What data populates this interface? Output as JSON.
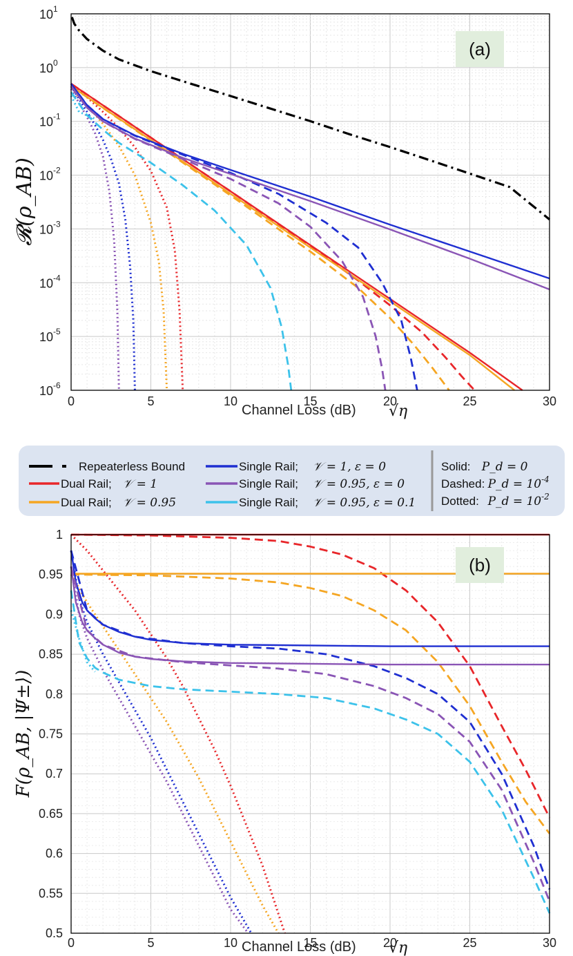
{
  "legend": {
    "items": [
      {
        "key": "bound",
        "label": "Repeaterless Bound",
        "color": "#000000",
        "math": ""
      },
      {
        "key": "dr1",
        "label": "Dual Rail;",
        "color": "#e8262a",
        "math": "𝒱 = 1"
      },
      {
        "key": "dr95",
        "label": "Dual Rail;",
        "color": "#f5a623",
        "math": "𝒱 = 0.95"
      },
      {
        "key": "sr1",
        "label": "Single Rail;",
        "color": "#1f2fd1",
        "math": "𝒱 = 1, ε = 0"
      },
      {
        "key": "sr95",
        "label": "Single Rail;",
        "color": "#8a55b5",
        "math": "𝒱 = 0.95, ε = 0"
      },
      {
        "key": "sr95e",
        "label": "Single Rail;",
        "color": "#3cc2ea",
        "math": "𝒱 = 0.95, ε = 0.1"
      }
    ],
    "styles": [
      {
        "label": "Solid:",
        "math": "P_d = 0"
      },
      {
        "label": "Dashed:",
        "math": "P_d = 10^-4"
      },
      {
        "label": "Dotted:",
        "math": "P_d = 10^-2"
      }
    ]
  },
  "chart_data": [
    {
      "panel_label": "(a)",
      "type": "line",
      "yscale": "log",
      "xlabel": "Channel Loss (dB)",
      "xlabel_math": "√η",
      "ylabel": "𝓡(ρ_AB)",
      "xlim": [
        0,
        30
      ],
      "ylim": [
        1e-06,
        10
      ],
      "xticks": [
        "0",
        "5",
        "10",
        "15",
        "20",
        "25",
        "30"
      ],
      "yticks": [
        {
          "base": "10",
          "exp": "-6"
        },
        {
          "base": "10",
          "exp": "-5"
        },
        {
          "base": "10",
          "exp": "-4"
        },
        {
          "base": "10",
          "exp": "-3"
        },
        {
          "base": "10",
          "exp": "-2"
        },
        {
          "base": "10",
          "exp": "-1"
        },
        {
          "base": "10",
          "exp": "0"
        },
        {
          "base": "10",
          "exp": "1"
        }
      ],
      "grid": true,
      "series": [
        {
          "name": "Repeaterless Bound",
          "color": "#000000",
          "style": "dashdot",
          "x": [
            0.05,
            0.2,
            0.5,
            1,
            2,
            3,
            5,
            7.5,
            10,
            12.5,
            15,
            17.5,
            20,
            22.5,
            25,
            27.5,
            30
          ],
          "y": [
            8.67,
            6.55,
            4.89,
            3.39,
            2.06,
            1.42,
            0.86,
            0.502,
            0.296,
            0.173,
            0.101,
            0.057,
            0.0333,
            0.0189,
            0.0107,
            0.00601,
            0.0015
          ]
        },
        {
          "name": "Dual Rail; 𝒱 = 1 (P_d = 0)",
          "color": "#e8262a",
          "style": "solid",
          "x": [
            0,
            5,
            10,
            15,
            20,
            25,
            28.3
          ],
          "y": [
            0.5,
            0.05,
            0.005,
            0.0005,
            5e-05,
            5e-06,
            1e-06
          ]
        },
        {
          "name": "Dual Rail; 𝒱 = 1 (P_d = 1e-4)",
          "color": "#e8262a",
          "style": "dashed",
          "x": [
            0,
            5,
            10,
            15,
            18,
            20,
            22,
            23.5,
            24.5,
            25.3
          ],
          "y": [
            0.5,
            0.05,
            0.005,
            0.00048,
            0.00011,
            3.8e-05,
            1.2e-05,
            4e-06,
            1.8e-06,
            1e-06
          ]
        },
        {
          "name": "Dual Rail; 𝒱 = 1 (P_d = 1e-2)",
          "color": "#e8262a",
          "style": "dotted",
          "x": [
            0,
            1,
            2,
            3,
            4,
            5,
            6,
            6.5,
            6.8,
            7.0
          ],
          "y": [
            0.5,
            0.28,
            0.15,
            0.075,
            0.033,
            0.012,
            0.0025,
            0.0004,
            3e-05,
            1e-06
          ]
        },
        {
          "name": "Dual Rail; 𝒱 = 0.95 (P_d = 0)",
          "color": "#f5a623",
          "style": "solid",
          "x": [
            0,
            5,
            10,
            15,
            20,
            25,
            27.8
          ],
          "y": [
            0.45,
            0.045,
            0.0045,
            0.00045,
            4.5e-05,
            4.5e-06,
            1e-06
          ]
        },
        {
          "name": "Dual Rail; 𝒱 = 0.95 (P_d = 1e-4)",
          "color": "#f5a623",
          "style": "dashed",
          "x": [
            0,
            5,
            10,
            15,
            18,
            20,
            21.5,
            22.7,
            23.7
          ],
          "y": [
            0.45,
            0.044,
            0.0042,
            0.00038,
            8e-05,
            2.2e-05,
            7e-06,
            2.5e-06,
            1e-06
          ]
        },
        {
          "name": "Dual Rail; 𝒱 = 0.95 (P_d = 1e-2)",
          "color": "#f5a623",
          "style": "dotted",
          "x": [
            0,
            1,
            2,
            3,
            4,
            5,
            5.5,
            5.8,
            6.0
          ],
          "y": [
            0.4,
            0.2,
            0.09,
            0.035,
            0.01,
            0.0013,
            0.00025,
            3e-05,
            1e-06
          ]
        },
        {
          "name": "Single Rail; 𝒱 = 1, ε = 0 (P_d = 0)",
          "color": "#1f2fd1",
          "style": "solid",
          "x": [
            0,
            1,
            2,
            4,
            7,
            10,
            15,
            20,
            25,
            30
          ],
          "y": [
            0.5,
            0.2,
            0.11,
            0.055,
            0.025,
            0.0125,
            0.004,
            0.0012,
            0.00038,
            0.00012
          ]
        },
        {
          "name": "Single Rail; 𝒱 = 1, ε = 0 (P_d = 1e-4)",
          "color": "#1f2fd1",
          "style": "dashed",
          "x": [
            0,
            1,
            2,
            4,
            7,
            10,
            13,
            16,
            18,
            19.5,
            20.7,
            21.3,
            21.7
          ],
          "y": [
            0.5,
            0.2,
            0.11,
            0.054,
            0.024,
            0.011,
            0.0045,
            0.0013,
            0.00045,
            0.0001,
            2e-05,
            4e-06,
            1e-06
          ]
        },
        {
          "name": "Single Rail; 𝒱 = 1, ε = 0 (P_d = 1e-2)",
          "color": "#1f2fd1",
          "style": "dotted",
          "x": [
            0,
            0.5,
            1,
            1.5,
            2,
            2.5,
            3,
            3.4,
            3.7,
            3.9,
            4.0
          ],
          "y": [
            0.45,
            0.26,
            0.15,
            0.085,
            0.045,
            0.02,
            0.007,
            0.0015,
            0.0002,
            2e-05,
            1e-06
          ]
        },
        {
          "name": "Single Rail; 𝒱 = 0.95, ε = 0 (P_d = 0)",
          "color": "#8a55b5",
          "style": "solid",
          "x": [
            0,
            1,
            2,
            4,
            7,
            10,
            15,
            20,
            25,
            30
          ],
          "y": [
            0.45,
            0.18,
            0.1,
            0.048,
            0.021,
            0.0105,
            0.0033,
            0.00098,
            0.00028,
            7.5e-05
          ]
        },
        {
          "name": "Single Rail; 𝒱 = 0.95, ε = 0 (P_d = 1e-4)",
          "color": "#8a55b5",
          "style": "dashed",
          "x": [
            0,
            1,
            2,
            4,
            7,
            10,
            13,
            15,
            17,
            18.3,
            19.1,
            19.5,
            19.7
          ],
          "y": [
            0.45,
            0.18,
            0.1,
            0.047,
            0.02,
            0.0085,
            0.003,
            0.0011,
            0.00025,
            5.5e-05,
            1e-05,
            2.5e-06,
            1e-06
          ]
        },
        {
          "name": "Single Rail; 𝒱 = 0.95, ε = 0 (P_d = 1e-2)",
          "color": "#8a55b5",
          "style": "dotted",
          "x": [
            0,
            0.5,
            1,
            1.5,
            2,
            2.4,
            2.7,
            2.9,
            3.0
          ],
          "y": [
            0.4,
            0.22,
            0.12,
            0.06,
            0.022,
            0.005,
            0.0006,
            3e-05,
            1e-06
          ]
        },
        {
          "name": "Single Rail; 𝒱 = 0.95, ε = 0.1 (P_d = 1e-4)",
          "color": "#3cc2ea",
          "style": "dashed",
          "x": [
            0,
            1,
            2,
            3,
            5,
            7,
            9,
            11,
            12.5,
            13.2,
            13.6,
            13.8
          ],
          "y": [
            0.35,
            0.13,
            0.07,
            0.04,
            0.017,
            0.0065,
            0.0022,
            0.0005,
            8e-05,
            1.5e-05,
            3e-06,
            1e-06
          ]
        },
        {
          "name": "Single Rail; 𝒱 = 0.95, ε = 0.1 (P_d = 1e-2)",
          "color": "#3cc2ea",
          "style": "dotted",
          "x": [
            0,
            0.5,
            1,
            1.3,
            1.5
          ],
          "y": [
            0.3,
            0.15,
            0.13,
            0.12,
            0.11
          ]
        }
      ]
    },
    {
      "panel_label": "(b)",
      "type": "line",
      "yscale": "linear",
      "xlabel": "Channel Loss (dB)",
      "xlabel_math": "√η",
      "ylabel": "F(ρ_AB, |Ψ±⟩)",
      "xlim": [
        0,
        30
      ],
      "ylim": [
        0.5,
        1.0
      ],
      "xticks": [
        "0",
        "5",
        "10",
        "15",
        "20",
        "25",
        "30"
      ],
      "yticks": [
        "0.5",
        "0.55",
        "0.6",
        "0.65",
        "0.7",
        "0.75",
        "0.8",
        "0.85",
        "0.9",
        "0.95",
        "1"
      ],
      "grid": true,
      "series": [
        {
          "name": "Dual Rail; 𝒱 = 1 (P_d = 0)",
          "color": "#e8262a",
          "style": "solid",
          "x": [
            0,
            30
          ],
          "y": [
            1.0,
            1.0
          ]
        },
        {
          "name": "Dual Rail; 𝒱 = 1 (P_d = 1e-4)",
          "color": "#e8262a",
          "style": "dashed",
          "x": [
            0,
            5,
            10,
            13,
            15,
            17,
            19,
            21,
            23,
            25,
            27,
            28.5,
            30
          ],
          "y": [
            1.0,
            0.999,
            0.996,
            0.992,
            0.985,
            0.975,
            0.958,
            0.93,
            0.89,
            0.835,
            0.76,
            0.705,
            0.645
          ]
        },
        {
          "name": "Dual Rail; 𝒱 = 1 (P_d = 1e-2)",
          "color": "#e8262a",
          "style": "dotted",
          "x": [
            0,
            1,
            2,
            3,
            4,
            5,
            6,
            7,
            8,
            9,
            10,
            11,
            12,
            13.4
          ],
          "y": [
            1.0,
            0.98,
            0.955,
            0.93,
            0.905,
            0.875,
            0.845,
            0.81,
            0.77,
            0.73,
            0.685,
            0.635,
            0.585,
            0.5
          ]
        },
        {
          "name": "Dual Rail; 𝒱 = 0.95 (P_d = 0)",
          "color": "#f5a623",
          "style": "solid",
          "x": [
            0,
            30
          ],
          "y": [
            0.951,
            0.951
          ]
        },
        {
          "name": "Dual Rail; 𝒱 = 0.95 (P_d = 1e-4)",
          "color": "#f5a623",
          "style": "dashed",
          "x": [
            0,
            5,
            10,
            13,
            15,
            17,
            19,
            21,
            23,
            25,
            27,
            28.5,
            30
          ],
          "y": [
            0.95,
            0.949,
            0.945,
            0.94,
            0.933,
            0.923,
            0.905,
            0.88,
            0.84,
            0.785,
            0.715,
            0.665,
            0.625
          ]
        },
        {
          "name": "Dual Rail; 𝒱 = 0.95 (P_d = 1e-2)",
          "color": "#f5a623",
          "style": "dotted",
          "x": [
            0,
            1,
            2,
            3,
            4,
            5,
            6,
            7,
            8,
            9,
            10,
            11,
            12,
            13.0
          ],
          "y": [
            0.95,
            0.915,
            0.885,
            0.855,
            0.825,
            0.795,
            0.765,
            0.73,
            0.695,
            0.655,
            0.615,
            0.575,
            0.535,
            0.5
          ]
        },
        {
          "name": "Single Rail; 𝒱 = 1, ε = 0 (P_d = 0)",
          "color": "#1f2fd1",
          "style": "solid",
          "x": [
            0,
            0.3,
            0.7,
            1,
            1.5,
            2,
            3,
            4,
            5,
            7,
            10,
            15,
            20,
            30
          ],
          "y": [
            0.98,
            0.94,
            0.915,
            0.905,
            0.895,
            0.887,
            0.878,
            0.872,
            0.868,
            0.864,
            0.862,
            0.861,
            0.86,
            0.86
          ]
        },
        {
          "name": "Single Rail; 𝒱 = 1, ε = 0 (P_d = 1e-4)",
          "color": "#1f2fd1",
          "style": "dashed",
          "x": [
            0,
            1,
            2,
            4,
            7,
            10,
            13,
            16,
            19,
            21,
            23,
            25,
            27,
            29,
            30
          ],
          "y": [
            0.98,
            0.905,
            0.887,
            0.872,
            0.864,
            0.86,
            0.857,
            0.85,
            0.835,
            0.82,
            0.8,
            0.765,
            0.7,
            0.61,
            0.555
          ]
        },
        {
          "name": "Single Rail; 𝒱 = 1, ε = 0 (P_d = 1e-2)",
          "color": "#1f2fd1",
          "style": "dotted",
          "x": [
            0,
            0.5,
            1,
            2,
            3,
            4,
            5,
            6,
            7,
            8,
            9,
            10,
            11.3
          ],
          "y": [
            0.98,
            0.92,
            0.89,
            0.85,
            0.815,
            0.78,
            0.745,
            0.705,
            0.665,
            0.625,
            0.585,
            0.545,
            0.5
          ]
        },
        {
          "name": "Single Rail; 𝒱 = 0.95, ε = 0 (P_d = 0)",
          "color": "#8a55b5",
          "style": "solid",
          "x": [
            0,
            0.3,
            0.7,
            1,
            1.5,
            2,
            3,
            4,
            5,
            7,
            10,
            15,
            20,
            30
          ],
          "y": [
            0.96,
            0.915,
            0.89,
            0.88,
            0.87,
            0.862,
            0.852,
            0.847,
            0.844,
            0.841,
            0.839,
            0.838,
            0.837,
            0.837
          ]
        },
        {
          "name": "Single Rail; 𝒱 = 0.95, ε = 0 (P_d = 1e-4)",
          "color": "#8a55b5",
          "style": "dashed",
          "x": [
            0,
            1,
            2,
            4,
            7,
            10,
            13,
            16,
            19,
            21,
            23,
            25,
            27,
            29,
            30
          ],
          "y": [
            0.96,
            0.88,
            0.862,
            0.847,
            0.84,
            0.836,
            0.832,
            0.825,
            0.81,
            0.795,
            0.775,
            0.74,
            0.68,
            0.59,
            0.54
          ]
        },
        {
          "name": "Single Rail; 𝒱 = 0.95, ε = 0 (P_d = 1e-2)",
          "color": "#8a55b5",
          "style": "dotted",
          "x": [
            0,
            0.5,
            1,
            2,
            3,
            4,
            5,
            6,
            7,
            8,
            9,
            10,
            11.1
          ],
          "y": [
            0.96,
            0.9,
            0.87,
            0.83,
            0.795,
            0.76,
            0.725,
            0.69,
            0.65,
            0.61,
            0.57,
            0.53,
            0.5
          ]
        },
        {
          "name": "Single Rail; 𝒱 = 0.95, ε = 0.1 (P_d = 1e-4)",
          "color": "#3cc2ea",
          "style": "dashed",
          "x": [
            0,
            0.5,
            1,
            1.5,
            2,
            3,
            5,
            7,
            10,
            13,
            16,
            19,
            21,
            23,
            25,
            27,
            29,
            30
          ],
          "y": [
            0.93,
            0.865,
            0.845,
            0.833,
            0.827,
            0.818,
            0.81,
            0.806,
            0.803,
            0.8,
            0.795,
            0.782,
            0.768,
            0.75,
            0.715,
            0.655,
            0.57,
            0.525
          ]
        },
        {
          "name": "Single Rail; 𝒱 = 0.95, ε = 0.1 (P_d = 1e-2)",
          "color": "#3cc2ea",
          "style": "dotted",
          "x": [
            0,
            0.5,
            1,
            1.5
          ],
          "y": [
            0.905,
            0.87,
            0.84,
            0.828
          ]
        }
      ]
    }
  ]
}
